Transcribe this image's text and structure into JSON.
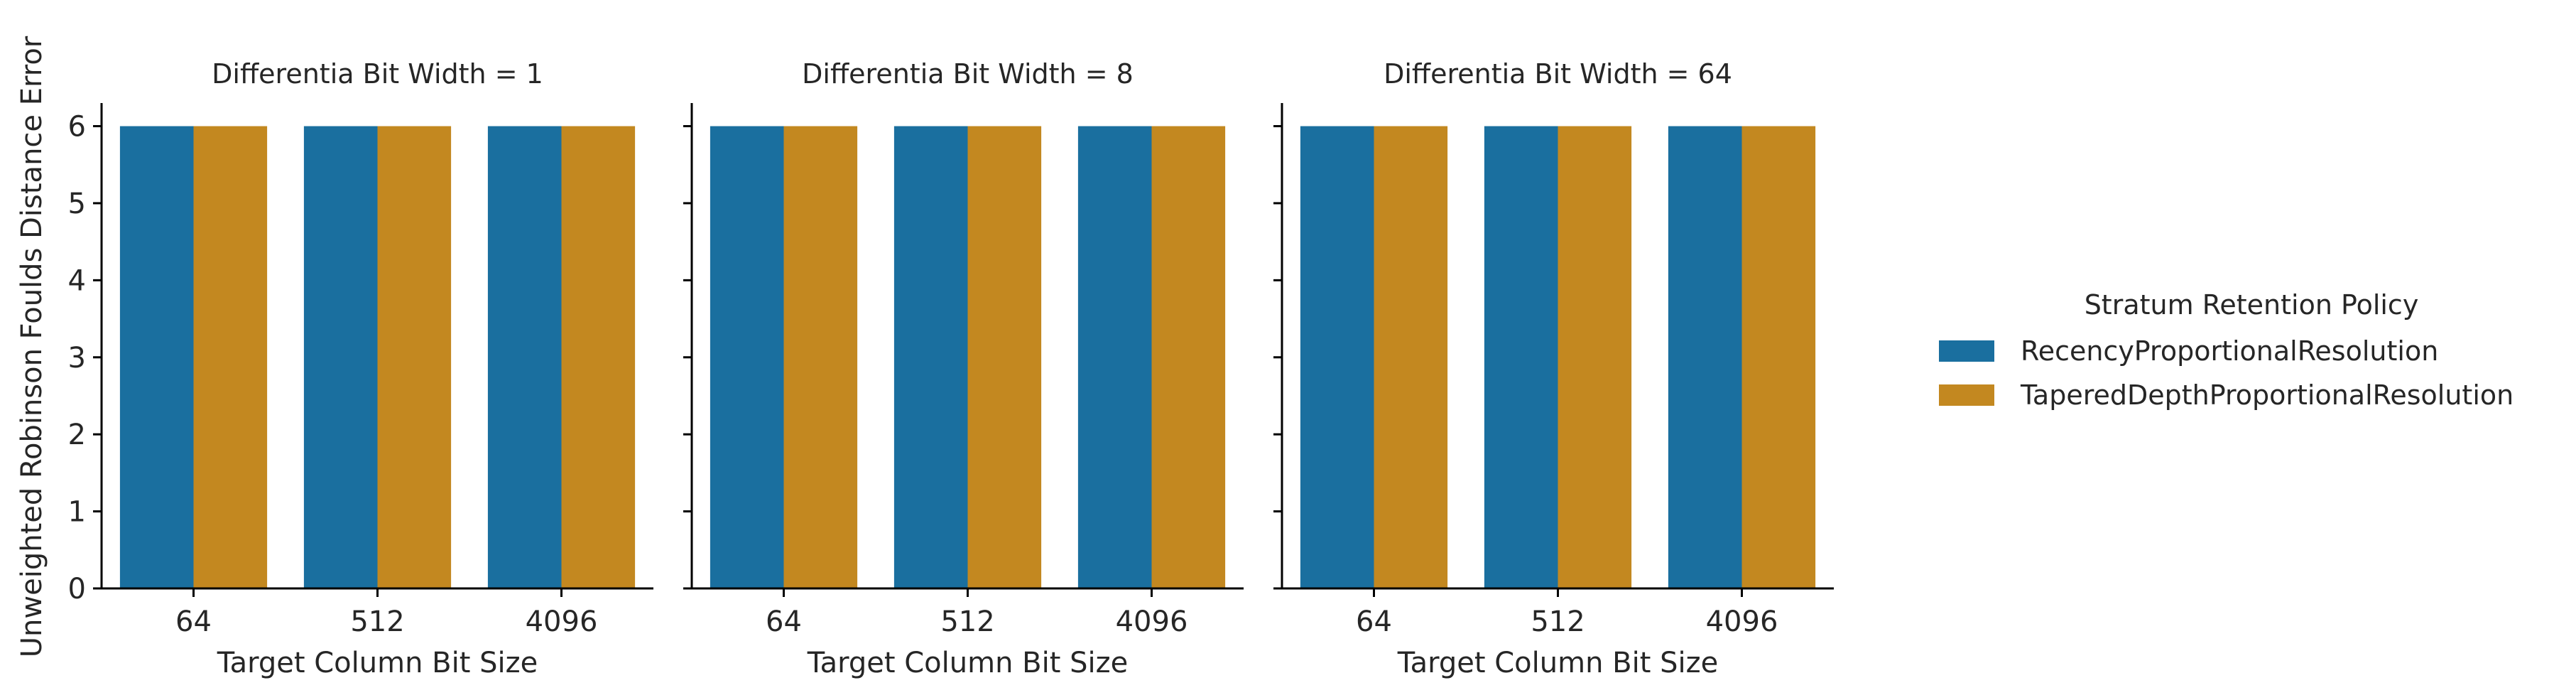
{
  "chart_data": {
    "type": "bar",
    "ylabel": "Unweighted Robinson Foulds Distance Error",
    "ylim": [
      0,
      6.3
    ],
    "yticks": [
      "0",
      "1",
      "2",
      "3",
      "4",
      "5",
      "6"
    ],
    "legend": {
      "title": "Stratum Retention Policy",
      "placement": "right"
    },
    "series_names": [
      "RecencyProportionalResolution",
      "TaperedDepthProportionalResolution"
    ],
    "series_colors": [
      "#1a6f9f",
      "#c38820"
    ],
    "panels": [
      {
        "title": "Differentia Bit Width = 1",
        "xlabel": "Target Column Bit Size",
        "categories": [
          "64",
          "512",
          "4096"
        ],
        "series": [
          {
            "name": "RecencyProportionalResolution",
            "values": [
              6,
              6,
              6
            ]
          },
          {
            "name": "TaperedDepthProportionalResolution",
            "values": [
              6,
              6,
              6
            ]
          }
        ]
      },
      {
        "title": "Differentia Bit Width = 8",
        "xlabel": "Target Column Bit Size",
        "categories": [
          "64",
          "512",
          "4096"
        ],
        "series": [
          {
            "name": "RecencyProportionalResolution",
            "values": [
              6,
              6,
              6
            ]
          },
          {
            "name": "TaperedDepthProportionalResolution",
            "values": [
              6,
              6,
              6
            ]
          }
        ]
      },
      {
        "title": "Differentia Bit Width = 64",
        "xlabel": "Target Column Bit Size",
        "categories": [
          "64",
          "512",
          "4096"
        ],
        "series": [
          {
            "name": "RecencyProportionalResolution",
            "values": [
              6,
              6,
              6
            ]
          },
          {
            "name": "TaperedDepthProportionalResolution",
            "values": [
              6,
              6,
              6
            ]
          }
        ]
      }
    ]
  }
}
